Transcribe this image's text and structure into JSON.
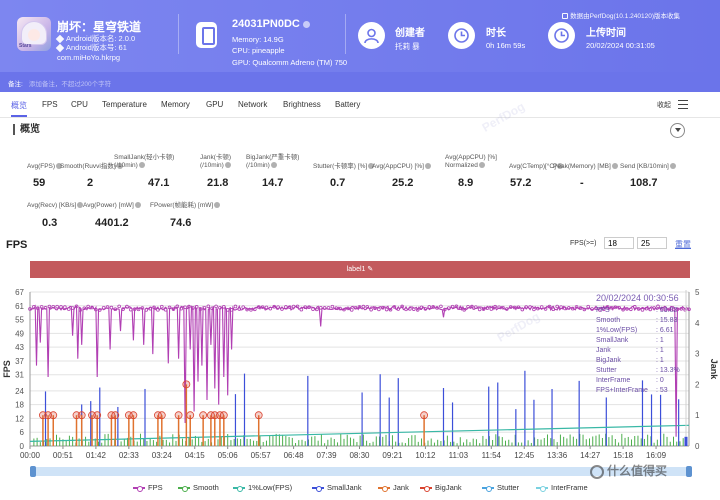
{
  "header": {
    "app_name": "崩坏：星穹铁道",
    "icon_text": "Stars",
    "android_version": "Android版本名: 2.0.0",
    "android_code": "Android版本号: 61",
    "package": "com.miHoYo.hkrpg",
    "device_model": "24031PN0DC",
    "memory": "Memory: 14.9G",
    "cpu": "CPU: pineapple",
    "gpu": "GPU: Qualcomm Adreno (TM) 750",
    "creator_label": "创建者",
    "creator_value": "托莉 暴",
    "duration_label": "时长",
    "duration_value": "0h 16m 59s",
    "upload_label": "上传时间",
    "upload_value": "20/02/2024 00:31:05",
    "data_source": "数据由PerfDog(10.1.240120)版本收集"
  },
  "remark": {
    "label": "备注:",
    "placeholder": "添加备注，不超过200个字符"
  },
  "tabs": [
    "概览",
    "FPS",
    "CPU",
    "Temperature",
    "Memory",
    "GPU",
    "Network",
    "Brightness",
    "Battery"
  ],
  "tabs_collapse": "收起",
  "overview": {
    "title": "概览",
    "stats_row1": [
      {
        "label": [
          "Avg(FPS)"
        ],
        "value": "59"
      },
      {
        "label": [
          "Smooth(Ruvvi指数)"
        ],
        "value": "2"
      },
      {
        "label": [
          "SmallJank(轻小卡顿)",
          "(/10min)"
        ],
        "value": "47.1"
      },
      {
        "label": [
          "Jank(卡顿)",
          "(/10min)"
        ],
        "value": "21.8"
      },
      {
        "label": [
          "BigJank(严重卡顿)",
          "(/10min)"
        ],
        "value": "14.7"
      },
      {
        "label": [
          "Stutter(卡顿率) [%]"
        ],
        "value": "0.7"
      },
      {
        "label": [
          "Avg(AppCPU) [%]"
        ],
        "value": "25.2"
      },
      {
        "label": [
          "Avg(AppCPU) [%]",
          "Normalized"
        ],
        "value": "8.9"
      },
      {
        "label": [
          "Avg(CTemp)[°C]"
        ],
        "value": "57.2"
      },
      {
        "label": [
          "Peak(Memory) [MB]"
        ],
        "value": "-"
      },
      {
        "label": [
          "Send [KB/10min]"
        ],
        "value": "108.7"
      }
    ],
    "stats_row2": [
      {
        "label": [
          "Avg(Recv) [KB/s]"
        ],
        "value": "0.3"
      },
      {
        "label": [
          "Avg(Power) [mW]"
        ],
        "value": "4401.2"
      },
      {
        "label": [
          "FPower(帧能耗) [mW]"
        ],
        "value": "74.6"
      }
    ]
  },
  "fps_section": {
    "title": "FPS",
    "filter_label": "FPS(>=)",
    "filter_value_1": "18",
    "filter_value_2": "25",
    "reset_label": "重置",
    "label_bar": "label1",
    "tooltip": {
      "date": "20/02/2024 00:30:56",
      "rows": [
        {
          "k": "FPS",
          "v": ": 53.02"
        },
        {
          "k": "Smooth",
          "v": ": 15.83"
        },
        {
          "k": "1%Low(FPS)",
          "v": ": 6.61"
        },
        {
          "k": "SmallJank",
          "v": ": 1"
        },
        {
          "k": "Jank",
          "v": ": 1"
        },
        {
          "k": "BigJank",
          "v": ": 1"
        },
        {
          "k": "Stutter",
          "v": ": 13.3%"
        },
        {
          "k": "InterFrame",
          "v": ": 0"
        },
        {
          "k": "FPS+InterFrame",
          "v": ": 53"
        }
      ]
    },
    "legend": [
      {
        "name": "FPS",
        "color": "#b13fb3"
      },
      {
        "name": "Smooth",
        "color": "#4cae4c"
      },
      {
        "name": "1%Low(FPS)",
        "color": "#39b8a6"
      },
      {
        "name": "SmallJank",
        "color": "#3c4fd9"
      },
      {
        "name": "Jank",
        "color": "#e0732f"
      },
      {
        "name": "BigJank",
        "color": "#d9432f"
      },
      {
        "name": "Stutter",
        "color": "#4aa3df"
      },
      {
        "name": "InterFrame",
        "color": "#7ad1e0"
      }
    ],
    "watermark": "PerfDog",
    "site_mark": "什么值得买"
  },
  "chart_data": {
    "type": "line",
    "ylabel": "FPS",
    "y2label": "Jank",
    "ylim": [
      0,
      67
    ],
    "yticks": [
      0,
      6,
      12,
      18,
      24,
      31,
      37,
      43,
      49,
      55,
      61,
      67
    ],
    "y2lim": [
      0,
      5
    ],
    "y2ticks": [
      0,
      1,
      2,
      3,
      4,
      5
    ],
    "xticks": [
      "00:00",
      "00:51",
      "01:42",
      "02:33",
      "03:24",
      "04:15",
      "05:06",
      "05:57",
      "06:48",
      "07:39",
      "08:30",
      "09:21",
      "10:12",
      "11:03",
      "11:54",
      "12:45",
      "13:36",
      "14:27",
      "15:18",
      "16:09"
    ],
    "series": [
      {
        "name": "FPS",
        "baseline": 60,
        "dips_time": [
          "00:10",
          "00:16",
          "00:28",
          "01:06",
          "01:14",
          "01:20",
          "01:44",
          "02:04",
          "02:20",
          "02:40",
          "02:56",
          "03:10",
          "03:34",
          "03:50",
          "04:00",
          "04:08",
          "04:14",
          "04:20",
          "04:26",
          "04:34",
          "04:40",
          "04:46",
          "04:52",
          "05:00",
          "05:06",
          "05:12",
          "07:30",
          "10:40",
          "16:40"
        ],
        "dips_value": [
          35,
          45,
          30,
          48,
          38,
          44,
          30,
          42,
          50,
          46,
          44,
          40,
          36,
          38,
          10,
          42,
          15,
          28,
          35,
          20,
          44,
          25,
          18,
          30,
          22,
          42,
          52,
          56,
          4
        ]
      },
      {
        "name": "Jank",
        "event_time": [
          "00:20",
          "00:28",
          "00:36",
          "01:12",
          "01:20",
          "01:36",
          "01:44",
          "02:06",
          "02:12",
          "02:33",
          "02:40",
          "03:18",
          "03:24",
          "03:50",
          "04:02",
          "04:08",
          "04:28",
          "04:40",
          "04:46",
          "04:54",
          "05:00",
          "05:54",
          "10:10"
        ],
        "value": [
          1,
          1,
          1,
          1,
          1,
          1,
          1,
          1,
          1,
          1,
          1,
          1,
          1,
          1,
          2,
          1,
          1,
          1,
          1,
          1,
          1,
          1,
          1
        ]
      },
      {
        "name": "1%Low(FPS)",
        "start": 2,
        "end": 9
      },
      {
        "name": "Smooth",
        "typical": 3
      }
    ]
  }
}
